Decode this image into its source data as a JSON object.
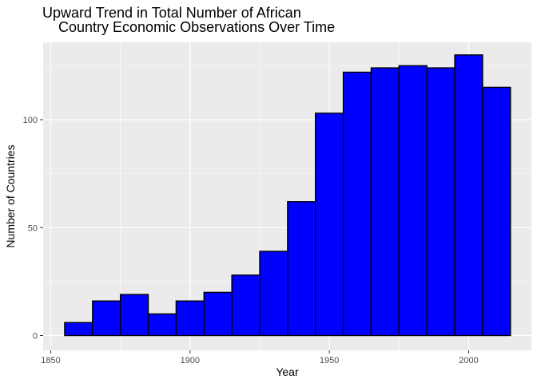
{
  "chart_data": {
    "type": "bar",
    "title_lines": [
      "Upward Trend in Total Number of African",
      "    Country Economic Observations Over Time"
    ],
    "xlabel": "Year",
    "ylabel": "Number of Countries",
    "xlim": [
      1850,
      2020
    ],
    "ylim": [
      0,
      135
    ],
    "x_ticks": [
      1850,
      1900,
      1950,
      2000
    ],
    "y_ticks": [
      0,
      50,
      100
    ],
    "bin_width": 10,
    "bins": [
      {
        "start": 1855,
        "end": 1865,
        "value": 6
      },
      {
        "start": 1865,
        "end": 1875,
        "value": 16
      },
      {
        "start": 1875,
        "end": 1885,
        "value": 19
      },
      {
        "start": 1885,
        "end": 1895,
        "value": 10
      },
      {
        "start": 1895,
        "end": 1905,
        "value": 16
      },
      {
        "start": 1905,
        "end": 1915,
        "value": 20
      },
      {
        "start": 1915,
        "end": 1925,
        "value": 28
      },
      {
        "start": 1925,
        "end": 1935,
        "value": 39
      },
      {
        "start": 1935,
        "end": 1945,
        "value": 62
      },
      {
        "start": 1945,
        "end": 1955,
        "value": 103
      },
      {
        "start": 1955,
        "end": 1965,
        "value": 122
      },
      {
        "start": 1965,
        "end": 1975,
        "value": 124
      },
      {
        "start": 1975,
        "end": 1985,
        "value": 125
      },
      {
        "start": 1985,
        "end": 1995,
        "value": 124
      },
      {
        "start": 1995,
        "end": 2005,
        "value": 130
      },
      {
        "start": 2005,
        "end": 2015,
        "value": 115
      }
    ],
    "grid": true,
    "colors": {
      "panel": "#ebebeb",
      "grid_major": "#ffffff",
      "bar_fill": "#0000ff",
      "bar_stroke": "#000000"
    }
  }
}
